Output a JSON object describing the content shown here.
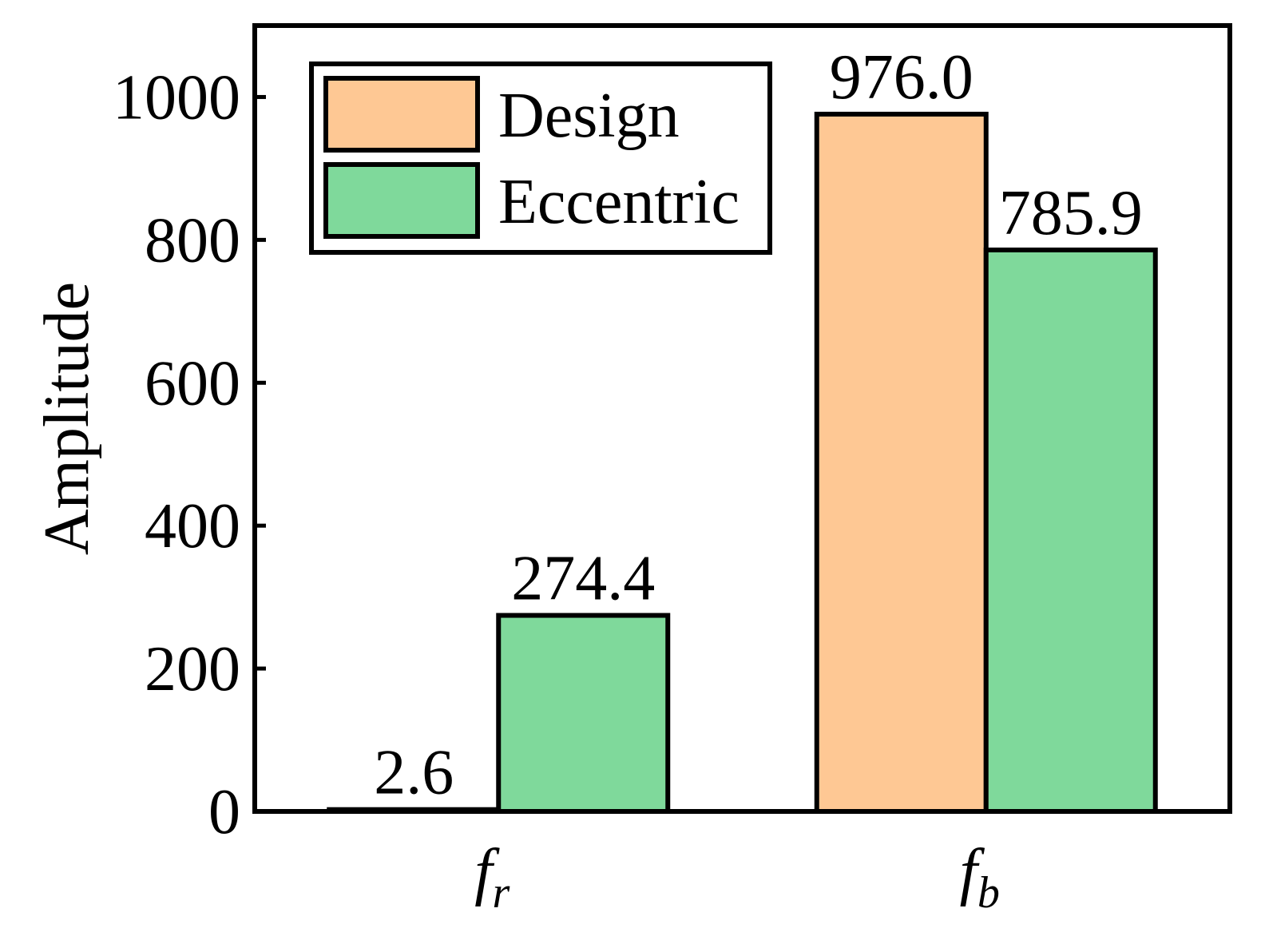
{
  "chart_data": {
    "type": "bar",
    "categories": [
      {
        "main": "f",
        "sub": "r"
      },
      {
        "main": "f",
        "sub": "b"
      }
    ],
    "series": [
      {
        "name": "Design",
        "color": "#FEC894",
        "values": [
          2.6,
          976.0
        ],
        "labels": [
          "2.6",
          "976.0"
        ]
      },
      {
        "name": "Eccentric",
        "color": "#7FD99B",
        "values": [
          274.4,
          785.9
        ],
        "labels": [
          "274.4",
          "785.9"
        ]
      }
    ],
    "title": "",
    "xlabel": "",
    "ylabel": "Amplitude",
    "ylim": [
      0,
      1100
    ],
    "yticks": [
      0,
      200,
      400,
      600,
      800,
      1000
    ],
    "legend": "top-left",
    "grid": false
  }
}
